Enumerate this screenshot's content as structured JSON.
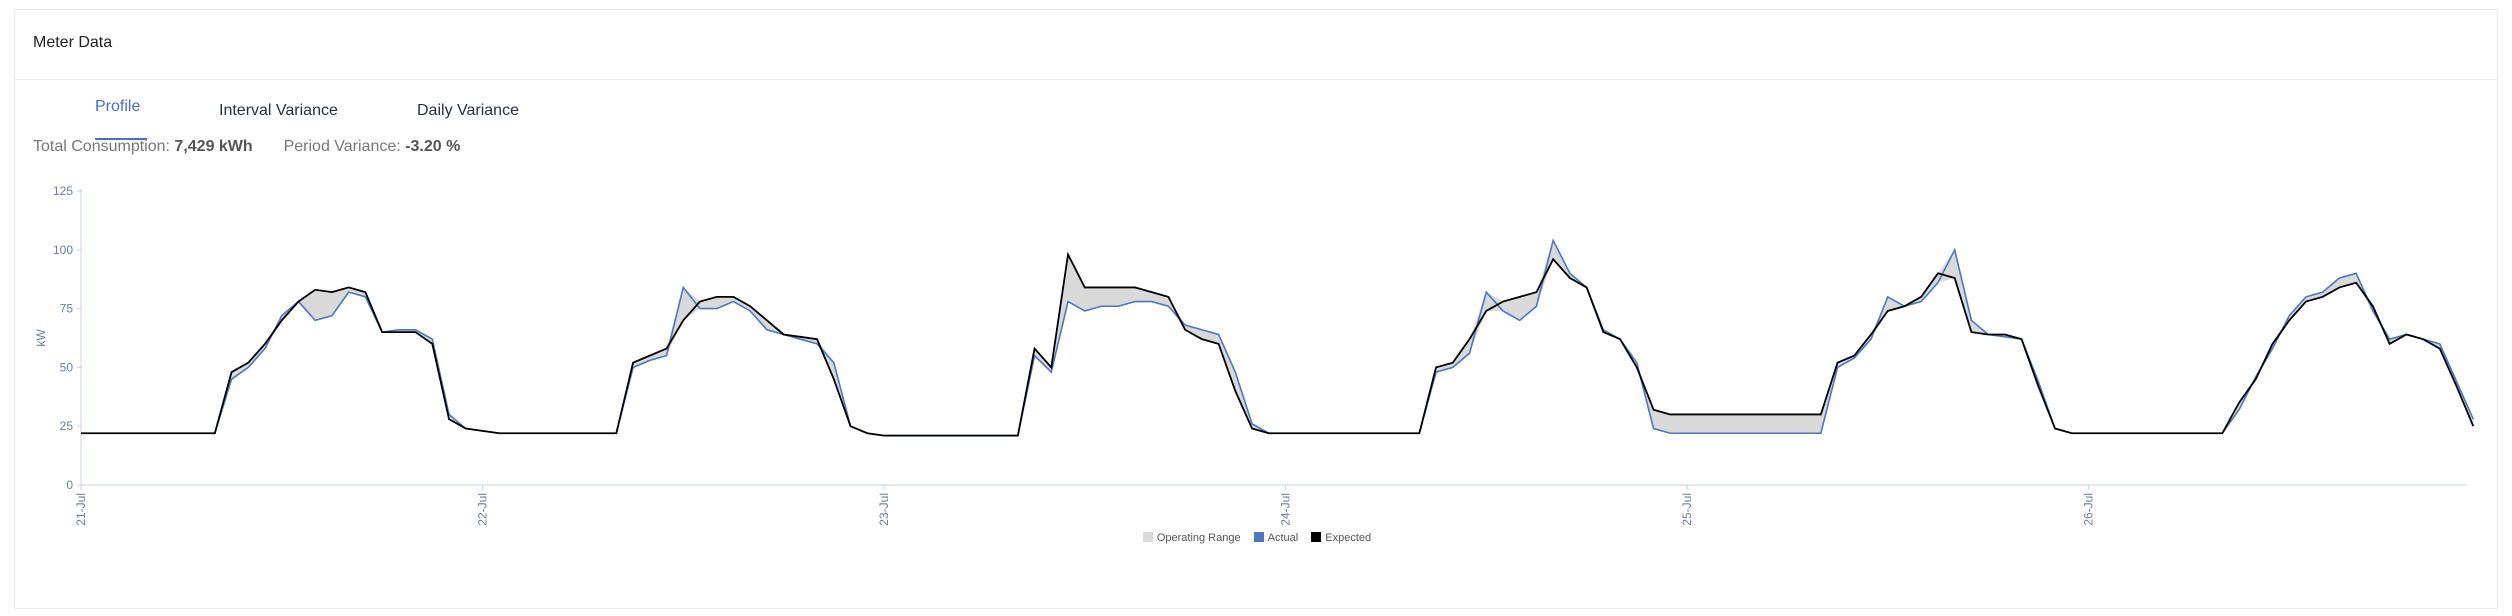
{
  "card": {
    "title": "Meter Data"
  },
  "tabs": [
    {
      "label": "Profile",
      "active": true
    },
    {
      "label": "Interval Variance",
      "active": false
    },
    {
      "label": "Daily Variance",
      "active": false
    }
  ],
  "summary": {
    "consumption_label": "Total Consumption:",
    "consumption_value": "7,429 kWh",
    "variance_label": "Period Variance:",
    "variance_value": "-3.20 %"
  },
  "colors": {
    "accent": "#4a6bdc",
    "operating_range": "#d9d9d9",
    "actual": "#4a78c0",
    "expected": "#000000",
    "axis_text": "#6b7da8"
  },
  "chart_data": {
    "type": "line",
    "title": "",
    "xlabel": "",
    "ylabel": "kW",
    "ylim": [
      0,
      125
    ],
    "yticks": [
      0,
      25,
      50,
      75,
      100,
      125
    ],
    "grid": false,
    "legend_position": "bottom-center",
    "xticks": [
      "21-Jul",
      "22-Jul",
      "23-Jul",
      "24-Jul",
      "25-Jul",
      "26-Jul"
    ],
    "hours_per_day": 24,
    "days": 6,
    "legend": [
      "Operating Range",
      "Actual",
      "Expected"
    ],
    "series": [
      {
        "name": "Expected",
        "color": "#000000",
        "daily_profiles": [
          [
            22,
            22,
            22,
            22,
            22,
            22,
            22,
            22,
            22,
            48,
            52,
            60,
            70,
            78,
            83,
            82,
            84,
            82,
            65,
            65,
            65,
            60,
            28,
            24
          ],
          [
            23,
            22,
            22,
            22,
            22,
            22,
            22,
            22,
            22,
            52,
            55,
            58,
            70,
            78,
            80,
            80,
            76,
            70,
            64,
            63,
            62,
            45,
            25,
            22
          ],
          [
            21,
            21,
            21,
            21,
            21,
            21,
            21,
            21,
            21,
            58,
            50,
            98,
            84,
            84,
            84,
            84,
            82,
            80,
            66,
            62,
            60,
            40,
            24,
            22
          ],
          [
            22,
            22,
            22,
            22,
            22,
            22,
            22,
            22,
            22,
            50,
            52,
            62,
            74,
            78,
            80,
            82,
            96,
            88,
            84,
            65,
            62,
            50,
            32,
            30
          ],
          [
            30,
            30,
            30,
            30,
            30,
            30,
            30,
            30,
            30,
            52,
            55,
            64,
            74,
            76,
            80,
            90,
            88,
            65,
            64,
            64,
            62,
            42,
            24,
            22
          ],
          [
            22,
            22,
            22,
            22,
            22,
            22,
            22,
            22,
            22,
            35,
            45,
            60,
            70,
            78,
            80,
            84,
            86,
            76,
            60,
            64,
            62,
            58,
            42,
            25
          ]
        ]
      },
      {
        "name": "Actual",
        "color": "#4a78c0",
        "daily_profiles": [
          [
            22,
            22,
            22,
            22,
            22,
            22,
            22,
            22,
            22,
            45,
            50,
            58,
            72,
            78,
            70,
            72,
            82,
            80,
            65,
            66,
            66,
            62,
            30,
            24
          ],
          [
            23,
            22,
            22,
            22,
            22,
            22,
            22,
            22,
            22,
            50,
            53,
            55,
            84,
            75,
            75,
            78,
            74,
            66,
            64,
            62,
            60,
            52,
            25,
            22
          ],
          [
            21,
            21,
            21,
            21,
            21,
            21,
            21,
            21,
            21,
            55,
            48,
            78,
            74,
            76,
            76,
            78,
            78,
            76,
            68,
            66,
            64,
            48,
            26,
            22
          ],
          [
            22,
            22,
            22,
            22,
            22,
            22,
            22,
            22,
            22,
            48,
            50,
            56,
            82,
            74,
            70,
            76,
            104,
            90,
            84,
            66,
            62,
            52,
            24,
            22
          ],
          [
            22,
            22,
            22,
            22,
            22,
            22,
            22,
            22,
            22,
            50,
            54,
            62,
            80,
            76,
            78,
            86,
            100,
            70,
            64,
            63,
            62,
            44,
            24,
            22
          ],
          [
            22,
            22,
            22,
            22,
            22,
            22,
            22,
            22,
            22,
            32,
            46,
            58,
            72,
            80,
            82,
            88,
            90,
            74,
            62,
            64,
            62,
            60,
            44,
            28
          ]
        ]
      }
    ]
  }
}
